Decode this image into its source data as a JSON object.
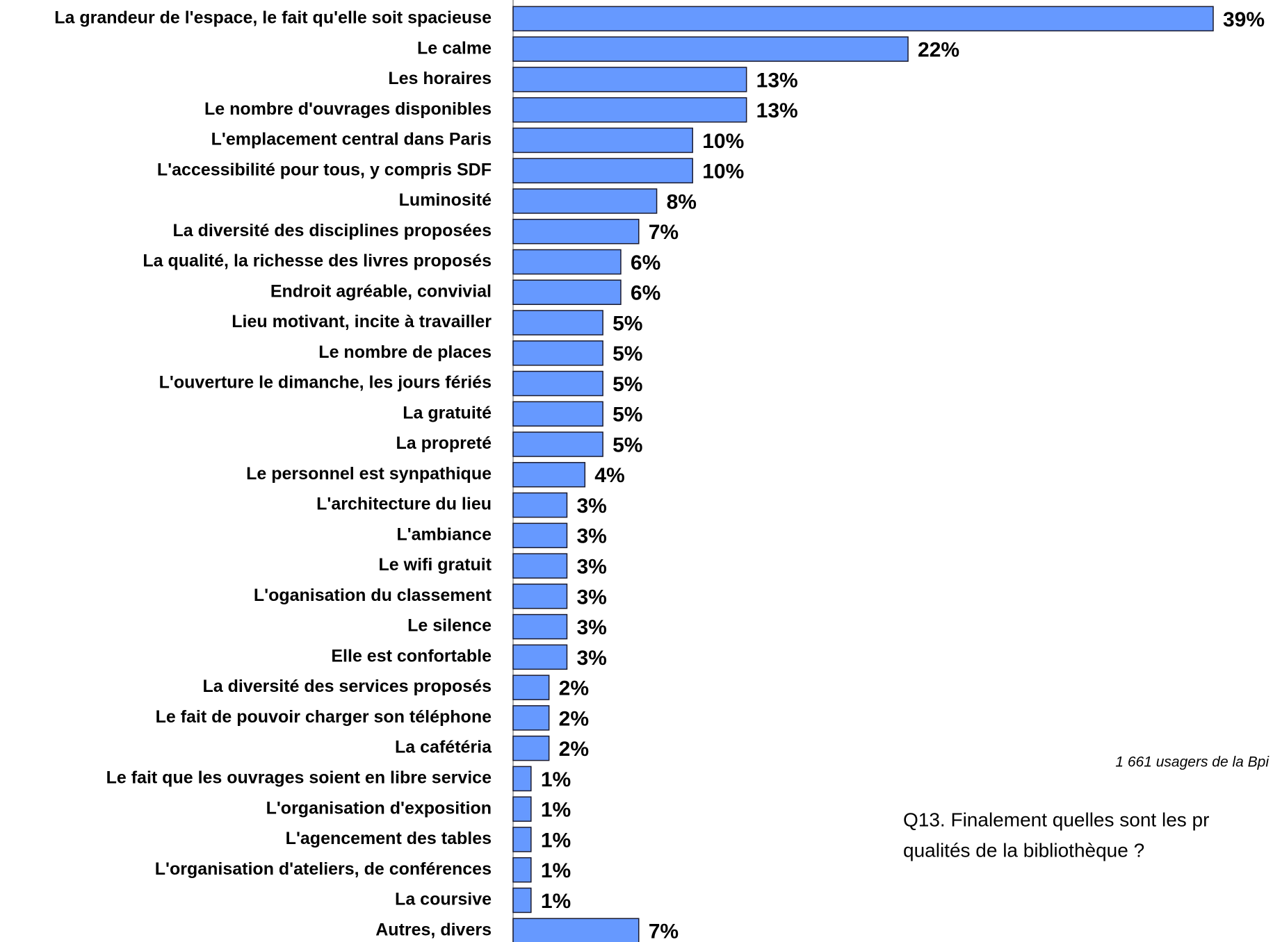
{
  "chart_data": {
    "type": "barh",
    "categories": [
      "La grandeur de l'espace, le fait qu'elle soit spacieuse",
      "Le calme",
      "Les horaires",
      "Le nombre d'ouvrages disponibles",
      "L'emplacement central dans Paris",
      "L'accessibilité pour tous, y compris SDF",
      "Luminosité",
      "La diversité des disciplines proposées",
      "La qualité, la richesse des livres proposés",
      "Endroit agréable, convivial",
      "Lieu motivant, incite à travailler",
      "Le nombre de places",
      "L'ouverture le dimanche, les jours fériés",
      "La gratuité",
      "La propreté",
      "Le personnel est synpathique",
      "L'architecture du lieu",
      "L'ambiance",
      "Le wifi gratuit",
      "L'oganisation du classement",
      "Le silence",
      "Elle est confortable",
      "La diversité des services proposés",
      "Le fait de pouvoir charger son téléphone",
      "La cafétéria",
      "Le fait que les ouvrages soient en libre service",
      "L'organisation d'exposition",
      "L'agencement des tables",
      "L'organisation d'ateliers, de conférences",
      "La coursive",
      "Autres, divers"
    ],
    "values": [
      39,
      22,
      13,
      13,
      10,
      10,
      8,
      7,
      6,
      6,
      5,
      5,
      5,
      5,
      5,
      4,
      3,
      3,
      3,
      3,
      3,
      3,
      2,
      2,
      2,
      1,
      1,
      1,
      1,
      1,
      7
    ],
    "value_labels": [
      "39%",
      "22%",
      "13%",
      "13%",
      "10%",
      "10%",
      "8%",
      "7%",
      "6%",
      "6%",
      "5%",
      "5%",
      "5%",
      "5%",
      "5%",
      "4%",
      "3%",
      "3%",
      "3%",
      "3%",
      "3%",
      "3%",
      "2%",
      "2%",
      "2%",
      "1%",
      "1%",
      "1%",
      "1%",
      "1%",
      "7%"
    ],
    "color": "#6699ff",
    "note": "1 661 usagers de la Bpi",
    "question": [
      "Q13. Finalement quelles sont les pr",
      "qualités de la bibliothèque ?"
    ]
  }
}
